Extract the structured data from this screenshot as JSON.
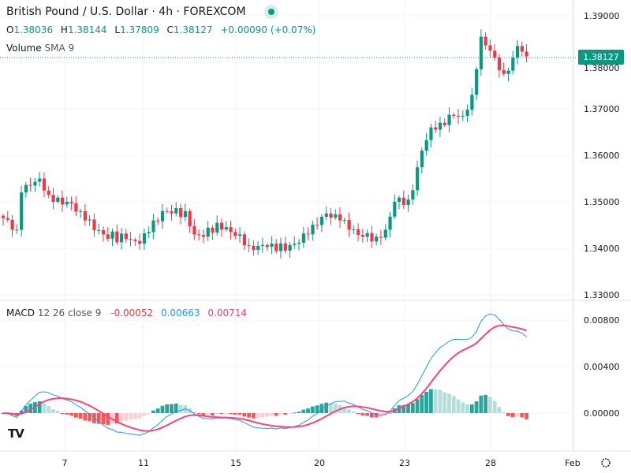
{
  "header": {
    "symbol_title": "British Pound / U.S. Dollar · 4h · FOREXCOM",
    "ohlc": {
      "o_label": "O",
      "o": "1.38036",
      "h_label": "H",
      "h": "1.38144",
      "l_label": "L",
      "l": "1.37809",
      "c_label": "C",
      "c": "1.38127",
      "change": "+0.00090 (+0.07%)"
    },
    "volume_label": "Volume",
    "volume_param": "SMA 9"
  },
  "macd_legend": {
    "label": "MACD",
    "params": "12 26 close 9",
    "hist": "-0.00052",
    "macd": "0.00663",
    "signal": "0.00714"
  },
  "current_price": "1.38127",
  "price_axis": [
    "1.39000",
    "1.38000",
    "1.37000",
    "1.36000",
    "1.35000",
    "1.34000",
    "1.33000"
  ],
  "macd_axis": [
    "0.00800",
    "0.00400",
    "0.00000"
  ],
  "time_axis": [
    "7",
    "11",
    "15",
    "20",
    "23",
    "28",
    "Feb"
  ],
  "logo": "TV",
  "colors": {
    "up": "#089981",
    "down": "#f23645",
    "macd": "#2196f3",
    "signal": "#ff4081",
    "hist_up": "#26a69a",
    "hist_up_fade": "#b2dfdb",
    "hist_dn": "#ff5252",
    "hist_dn_fade": "#ffcdd2"
  },
  "chart_data": {
    "type": "candlestick",
    "bars": 116,
    "close_keypoints": [
      [
        0,
        1.3465
      ],
      [
        3,
        1.344
      ],
      [
        4,
        1.352
      ],
      [
        6,
        1.3535
      ],
      [
        8,
        1.355
      ],
      [
        10,
        1.3515
      ],
      [
        11,
        1.35
      ],
      [
        14,
        1.35
      ],
      [
        17,
        1.348
      ],
      [
        18,
        1.346
      ],
      [
        22,
        1.343
      ],
      [
        27,
        1.342
      ],
      [
        30,
        1.341
      ],
      [
        32,
        1.3435
      ],
      [
        35,
        1.348
      ],
      [
        37,
        1.3475
      ],
      [
        40,
        1.348
      ],
      [
        42,
        1.343
      ],
      [
        44,
        1.3425
      ],
      [
        47,
        1.3455
      ],
      [
        50,
        1.3435
      ],
      [
        52,
        1.343
      ],
      [
        54,
        1.3405
      ],
      [
        56,
        1.3405
      ],
      [
        59,
        1.341
      ],
      [
        62,
        1.3395
      ],
      [
        64,
        1.341
      ],
      [
        67,
        1.343
      ],
      [
        69,
        1.345
      ],
      [
        71,
        1.3475
      ],
      [
        74,
        1.346
      ],
      [
        76,
        1.344
      ],
      [
        79,
        1.3425
      ],
      [
        82,
        1.3425
      ],
      [
        84,
        1.344
      ],
      [
        86,
        1.35
      ],
      [
        89,
        1.3505
      ],
      [
        90,
        1.3525
      ],
      [
        92,
        1.361
      ],
      [
        94,
        1.366
      ],
      [
        96,
        1.367
      ],
      [
        99,
        1.3685
      ],
      [
        101,
        1.3685
      ],
      [
        103,
        1.373
      ],
      [
        104,
        1.3785
      ],
      [
        105,
        1.3855
      ],
      [
        107,
        1.3825
      ],
      [
        108,
        1.381
      ],
      [
        110,
        1.3775
      ],
      [
        112,
        1.381
      ],
      [
        113,
        1.3835
      ],
      [
        115,
        1.38127
      ]
    ],
    "price_range": [
      1.3285,
      1.3925
    ],
    "macd_range": [
      -0.0035,
      0.0095
    ]
  }
}
